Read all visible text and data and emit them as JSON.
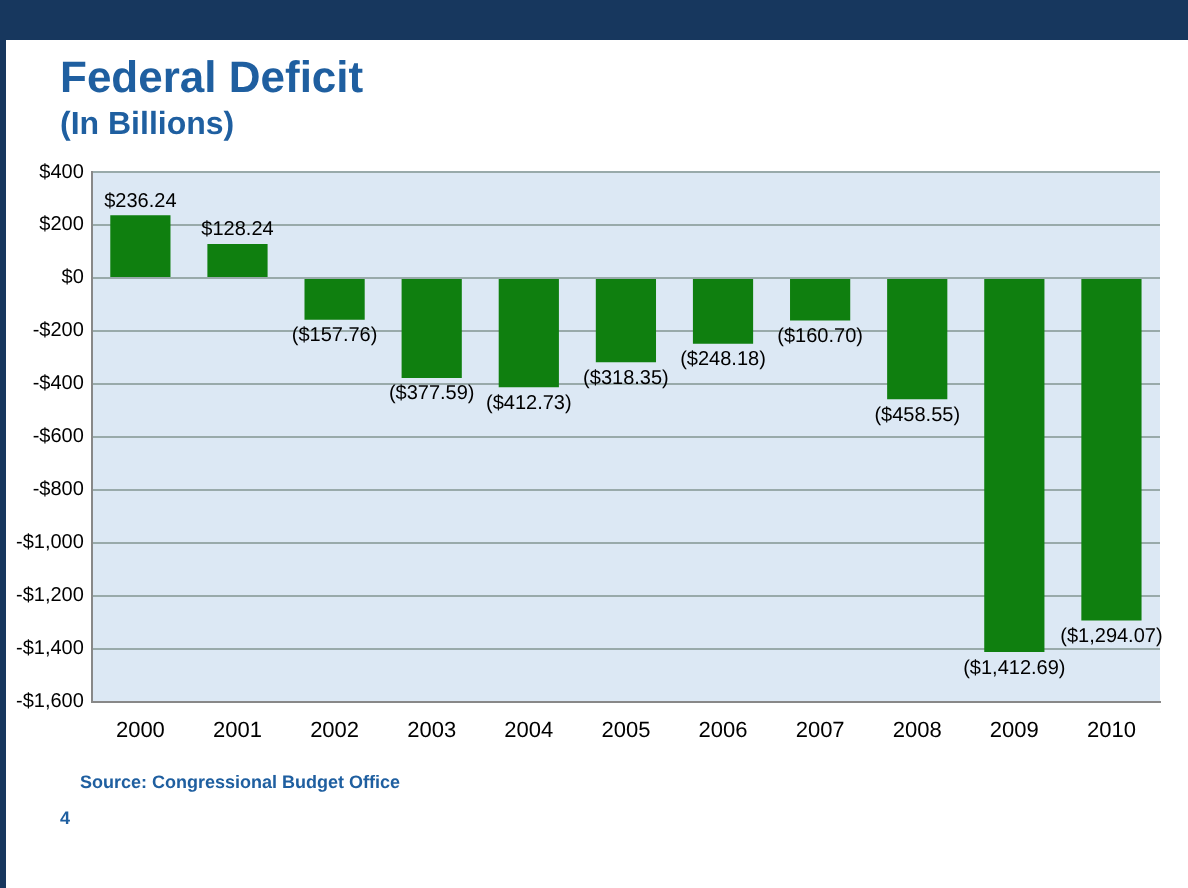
{
  "chart_data": {
    "type": "bar",
    "title": "Federal Deficit",
    "subtitle": "(In Billions)",
    "categories": [
      "2000",
      "2001",
      "2002",
      "2003",
      "2004",
      "2005",
      "2006",
      "2007",
      "2008",
      "2009",
      "2010"
    ],
    "values": [
      236.24,
      128.24,
      -157.76,
      -377.59,
      -412.73,
      -318.35,
      -248.18,
      -160.7,
      -458.55,
      -1412.69,
      -1294.07
    ],
    "value_labels": [
      "$236.24",
      "$128.24",
      "($157.76)",
      "($377.59)",
      "($412.73)",
      "($318.35)",
      "($248.18)",
      "($160.70)",
      "($458.55)",
      "($1,412.69)",
      "($1,294.07)"
    ],
    "color": "#0f7f0f",
    "ylim": [
      -1600,
      400
    ],
    "yticks": [
      {
        "value": 400,
        "label": "$400"
      },
      {
        "value": 200,
        "label": "$200"
      },
      {
        "value": 0,
        "label": "$0"
      },
      {
        "value": -200,
        "label": "-$200"
      },
      {
        "value": -400,
        "label": "-$400"
      },
      {
        "value": -600,
        "label": "-$600"
      },
      {
        "value": -800,
        "label": "-$800"
      },
      {
        "value": -1000,
        "label": "-$1,000"
      },
      {
        "value": -1200,
        "label": "-$1,200"
      },
      {
        "value": -1400,
        "label": "-$1,400"
      },
      {
        "value": -1600,
        "label": "-$1,600"
      }
    ],
    "grid": "y",
    "annotations": [
      "Source: Congressional Budget Office",
      "4"
    ]
  }
}
